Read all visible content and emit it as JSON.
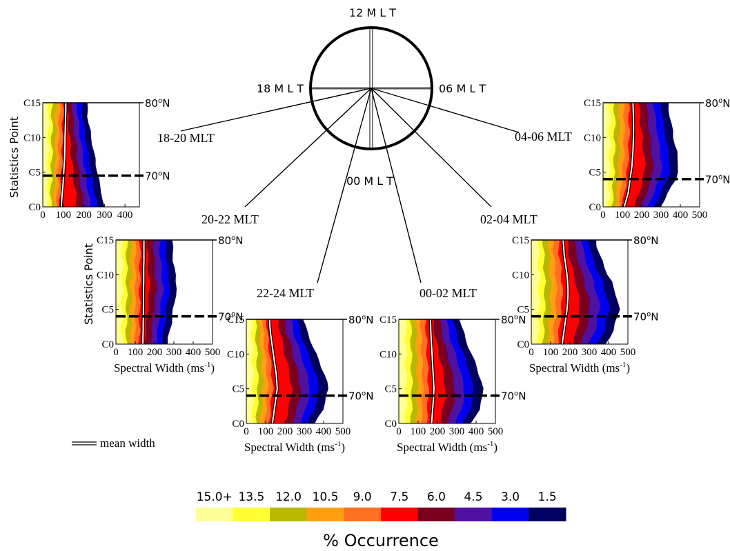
{
  "chart_data": {
    "type": "heatmap",
    "clock": {
      "labels": [
        "12 M L T",
        "18 M L T",
        "06 M L T",
        "00 M L T"
      ]
    },
    "colorbar": {
      "ticks": [
        "15.0+",
        "13.5",
        "12.0",
        "10.5",
        "9.0",
        "7.5",
        "6.0",
        "4.5",
        "3.0",
        "1.5"
      ],
      "colors": [
        "#ffff99",
        "#ffff33",
        "#b8b800",
        "#ffa010",
        "#ff7020",
        "#ff0000",
        "#7a0020",
        "#5010a0",
        "#0000ee",
        "#000060"
      ],
      "label": "% Occurrence"
    },
    "legend": {
      "label": "mean width"
    },
    "panels": [
      {
        "sector": "18-20 MLT",
        "ylabel": "Statistics Point",
        "xlabel": "",
        "xticks": [
          "0",
          "100",
          "200",
          "300",
          "400"
        ],
        "xlim": [
          0,
          470
        ],
        "yticks": [
          "C0",
          "C5",
          "C10",
          "C15"
        ],
        "lat_labels": [
          "80",
          "70"
        ],
        "lat_unit": "o",
        "lat_suffix": "N",
        "lat_points": [
          15,
          4.5
        ],
        "mean_width": [
          90,
          92,
          95,
          98,
          100,
          102,
          104,
          106,
          107,
          108,
          108,
          109,
          110,
          111,
          112,
          112
        ],
        "extent": [
          300,
          295,
          290,
          280,
          275,
          270,
          262,
          256,
          250,
          245,
          238,
          232,
          226,
          222,
          220,
          216
        ]
      },
      {
        "sector": "20-22 MLT",
        "ylabel": "Statistics Point",
        "xlabel": "Spectral Width (ms",
        "xlabel_sup": "-1",
        "xlabel_end": ")",
        "xticks": [
          "0",
          "100",
          "200",
          "300",
          "400",
          "500"
        ],
        "xlim": [
          0,
          500
        ],
        "yticks": [
          "C0",
          "C5",
          "C10",
          "C15"
        ],
        "lat_labels": [
          "80",
          "70"
        ],
        "lat_unit": "o",
        "lat_suffix": "N",
        "lat_points": [
          15,
          4
        ],
        "mean_width": [
          140,
          140,
          141,
          141,
          142,
          142,
          143,
          143,
          143,
          144,
          144,
          144,
          145,
          145,
          145,
          145
        ],
        "extent": [
          270,
          275,
          282,
          290,
          295,
          300,
          305,
          312,
          320,
          315,
          310,
          305,
          300,
          298,
          296,
          295
        ]
      },
      {
        "sector": "22-24 MLT",
        "ylabel": "",
        "xlabel": "Spectral Width (ms",
        "xlabel_sup": "-1",
        "xlabel_end": ")",
        "xticks": [
          "0",
          "100",
          "200",
          "300",
          "400",
          "500"
        ],
        "xlim": [
          0,
          500
        ],
        "yticks": [
          "C0",
          "C5",
          "C10",
          "C15"
        ],
        "lat_labels": [
          "80",
          "70"
        ],
        "lat_unit": "o",
        "lat_suffix": "N",
        "lat_points": [
          15,
          4
        ],
        "mean_width": [
          135,
          140,
          145,
          150,
          155,
          160,
          158,
          155,
          150,
          145,
          140,
          135,
          130,
          125,
          122,
          120
        ],
        "extent": [
          360,
          380,
          400,
          410,
          420,
          430,
          420,
          410,
          395,
          380,
          365,
          350,
          335,
          320,
          310,
          300
        ]
      },
      {
        "sector": "00-02 MLT",
        "ylabel": "",
        "xlabel": "Spectral Width (ms",
        "xlabel_sup": "-1",
        "xlabel_end": ")",
        "xticks": [
          "0",
          "100",
          "200",
          "300",
          "400",
          "500"
        ],
        "xlim": [
          0,
          500
        ],
        "yticks": [
          "C0",
          "C5",
          "C10",
          "C15"
        ],
        "lat_labels": [
          "80",
          "70"
        ],
        "lat_unit": "o",
        "lat_suffix": "N",
        "lat_points": [
          15,
          4
        ],
        "mean_width": [
          170,
          172,
          175,
          178,
          180,
          182,
          180,
          178,
          176,
          174,
          172,
          170,
          168,
          166,
          165,
          164
        ],
        "extent": [
          380,
          400,
          420,
          430,
          440,
          440,
          430,
          420,
          410,
          395,
          380,
          365,
          350,
          340,
          330,
          320
        ]
      },
      {
        "sector": "02-04 MLT",
        "ylabel": "",
        "xlabel": "Spectral Width (ms",
        "xlabel_sup": "-1",
        "xlabel_end": ")",
        "xticks": [
          "0",
          "100",
          "200",
          "300",
          "400",
          "500"
        ],
        "xlim": [
          0,
          500
        ],
        "yticks": [
          "C0",
          "C5",
          "C10",
          "C15"
        ],
        "lat_labels": [
          "80",
          "70"
        ],
        "lat_unit": "o",
        "lat_suffix": "N",
        "lat_points": [
          15,
          4
        ],
        "mean_width": [
          160,
          165,
          170,
          175,
          180,
          185,
          188,
          190,
          190,
          188,
          185,
          180,
          175,
          170,
          168,
          165
        ],
        "extent": [
          390,
          410,
          430,
          440,
          450,
          460,
          455,
          445,
          430,
          420,
          400,
          385,
          370,
          355,
          345,
          340
        ]
      },
      {
        "sector": "04-06 MLT",
        "ylabel": "",
        "xlabel": "",
        "xticks": [
          "0",
          "100",
          "200",
          "300",
          "400",
          "500"
        ],
        "xlim": [
          0,
          500
        ],
        "yticks": [
          "C0",
          "C5",
          "C10",
          "C15"
        ],
        "lat_labels": [
          "80",
          "70"
        ],
        "lat_unit": "o",
        "lat_suffix": "N",
        "lat_points": [
          15,
          4
        ],
        "mean_width": [
          110,
          120,
          130,
          135,
          140,
          145,
          150,
          152,
          155,
          156,
          157,
          158,
          158,
          157,
          156,
          155
        ],
        "extent": [
          300,
          320,
          340,
          360,
          380,
          390,
          395,
          390,
          385,
          375,
          370,
          365,
          355,
          350,
          345,
          340
        ]
      }
    ]
  }
}
